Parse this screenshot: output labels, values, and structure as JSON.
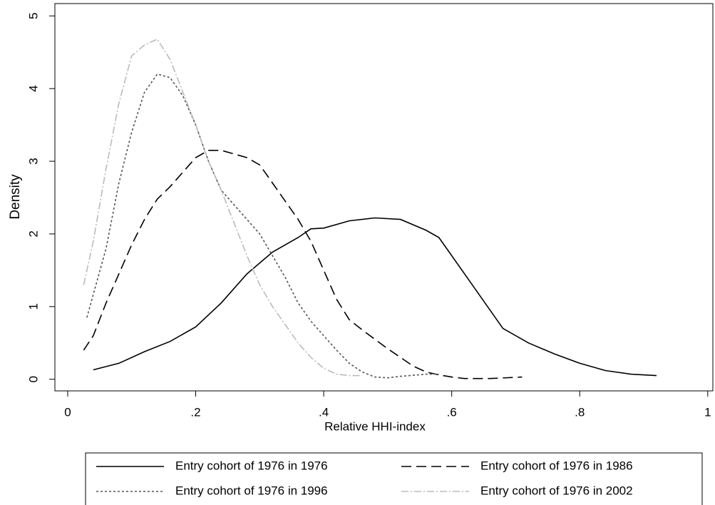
{
  "chart_data": {
    "type": "line",
    "xlabel": "Relative HHI-index",
    "ylabel": "Density",
    "xlim": [
      -0.02,
      1.008
    ],
    "ylim": [
      -0.16,
      5.17
    ],
    "xticks": [
      0,
      {
        "value": 0.2,
        "label": ".2"
      },
      {
        "value": 0.4,
        "label": ".4"
      },
      {
        "value": 0.6,
        "label": ".6"
      },
      {
        "value": 0.8,
        "label": ".8"
      },
      1
    ],
    "yticks": [
      0,
      1,
      2,
      3,
      4,
      5
    ],
    "legend": "bottom",
    "series": [
      {
        "name": "Entry cohort of 1976 in 1976",
        "color": "#000000",
        "line_style": "solid",
        "x": [
          0.04,
          0.08,
          0.12,
          0.16,
          0.2,
          0.24,
          0.28,
          0.32,
          0.36,
          0.38,
          0.4,
          0.44,
          0.48,
          0.52,
          0.56,
          0.58,
          0.6,
          0.64,
          0.68,
          0.72,
          0.76,
          0.8,
          0.84,
          0.88,
          0.92
        ],
        "values": [
          0.13,
          0.22,
          0.38,
          0.52,
          0.72,
          1.05,
          1.45,
          1.75,
          1.95,
          2.07,
          2.08,
          2.18,
          2.22,
          2.2,
          2.05,
          1.95,
          1.7,
          1.2,
          0.7,
          0.5,
          0.35,
          0.22,
          0.12,
          0.07,
          0.05
        ]
      },
      {
        "name": "Entry cohort of 1976 in 1986",
        "color": "#000000",
        "line_style": "dashed",
        "x": [
          0.025,
          0.04,
          0.06,
          0.08,
          0.1,
          0.12,
          0.14,
          0.16,
          0.18,
          0.2,
          0.22,
          0.24,
          0.26,
          0.28,
          0.3,
          0.32,
          0.34,
          0.36,
          0.38,
          0.4,
          0.42,
          0.44,
          0.46,
          0.48,
          0.5,
          0.52,
          0.54,
          0.56,
          0.58,
          0.6,
          0.62,
          0.66,
          0.71
        ],
        "values": [
          0.4,
          0.6,
          1.05,
          1.45,
          1.85,
          2.2,
          2.48,
          2.65,
          2.85,
          3.05,
          3.15,
          3.15,
          3.1,
          3.05,
          2.95,
          2.7,
          2.45,
          2.2,
          1.9,
          1.5,
          1.1,
          0.82,
          0.68,
          0.55,
          0.42,
          0.3,
          0.18,
          0.1,
          0.06,
          0.03,
          0.01,
          0.01,
          0.03
        ]
      },
      {
        "name": "Entry cohort of 1976 in 1996",
        "color": "#555555",
        "line_style": "dotted",
        "x": [
          0.03,
          0.06,
          0.08,
          0.1,
          0.12,
          0.14,
          0.16,
          0.18,
          0.2,
          0.22,
          0.24,
          0.26,
          0.28,
          0.3,
          0.32,
          0.34,
          0.36,
          0.38,
          0.4,
          0.42,
          0.44,
          0.46,
          0.48,
          0.5,
          0.52,
          0.56,
          0.58
        ],
        "values": [
          0.85,
          1.8,
          2.7,
          3.4,
          3.95,
          4.2,
          4.15,
          3.9,
          3.5,
          3.0,
          2.6,
          2.4,
          2.2,
          2.0,
          1.7,
          1.4,
          1.05,
          0.8,
          0.6,
          0.4,
          0.22,
          0.1,
          0.03,
          0.02,
          0.04,
          0.07,
          0.07
        ]
      },
      {
        "name": "Entry cohort of 1976 in 2002",
        "color": "#bbbbbb",
        "line_style": "dashdot",
        "x": [
          0.025,
          0.04,
          0.06,
          0.08,
          0.1,
          0.12,
          0.14,
          0.16,
          0.18,
          0.2,
          0.22,
          0.24,
          0.26,
          0.28,
          0.3,
          0.32,
          0.34,
          0.36,
          0.38,
          0.4,
          0.42,
          0.44,
          0.46
        ],
        "values": [
          1.3,
          1.9,
          2.9,
          3.8,
          4.45,
          4.6,
          4.68,
          4.4,
          3.95,
          3.5,
          3.0,
          2.6,
          2.15,
          1.7,
          1.3,
          1.0,
          0.75,
          0.5,
          0.3,
          0.15,
          0.07,
          0.05,
          0.05
        ]
      }
    ]
  }
}
